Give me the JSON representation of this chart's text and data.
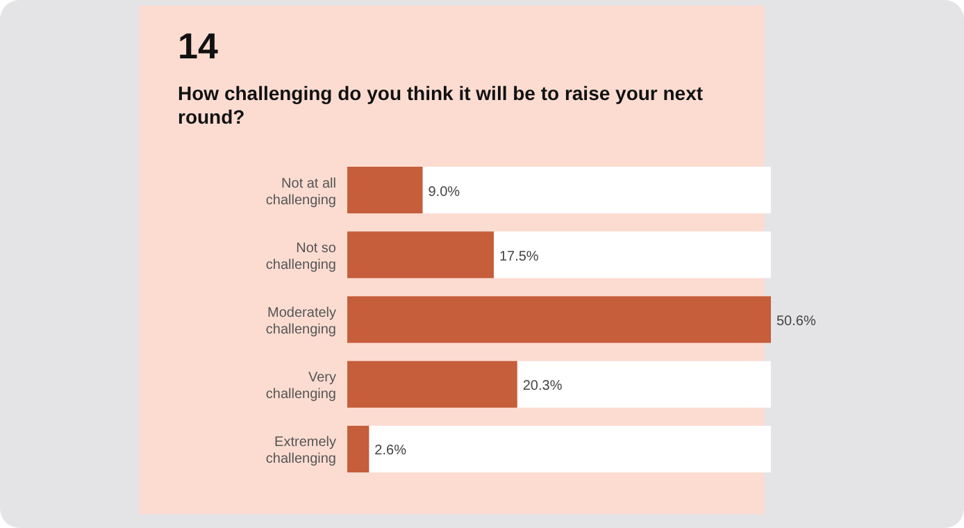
{
  "chart_data": {
    "type": "bar",
    "orientation": "horizontal",
    "title": "How challenging do you think it will be to raise your next round?",
    "annotations": [
      "14"
    ],
    "categories": [
      "Not at all challenging",
      "Not so challenging",
      "Moderately challenging",
      "Very challenging",
      "Extremely challenging"
    ],
    "values": [
      9.0,
      17.5,
      50.6,
      20.3,
      2.6
    ],
    "value_labels": [
      "9.0%",
      "17.5%",
      "50.6%",
      "20.3%",
      "2.6%"
    ],
    "color": "#c65d3b"
  }
}
